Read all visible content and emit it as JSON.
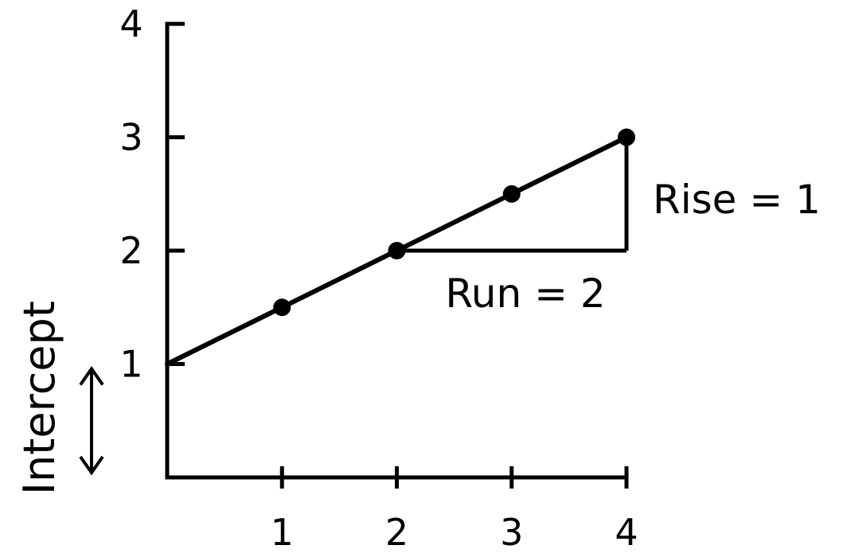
{
  "chart_data": {
    "type": "line",
    "title": "",
    "xlabel": "",
    "ylabel": "Intercept",
    "xlim": [
      0,
      4
    ],
    "ylim": [
      0,
      4
    ],
    "x_ticks": [
      "1",
      "2",
      "3",
      "4"
    ],
    "y_ticks": [
      "1",
      "2",
      "3",
      "4"
    ],
    "grid": false,
    "series": [
      {
        "x": [
          0,
          1,
          2,
          3,
          4
        ],
        "y": [
          1,
          1.5,
          2,
          2.5,
          3
        ],
        "marked_points": [
          [
            1,
            1.5
          ],
          [
            2,
            2
          ],
          [
            3,
            2.5
          ],
          [
            4,
            3
          ]
        ]
      }
    ],
    "annotations": {
      "run_label": "Run = 2",
      "rise_label": "Rise = 1",
      "slope_triangle": {
        "from": [
          2,
          2
        ],
        "corner": [
          4,
          2
        ],
        "to": [
          4,
          3
        ]
      },
      "intercept_arrow": {
        "y_from": 0,
        "y_to": 1
      }
    }
  }
}
